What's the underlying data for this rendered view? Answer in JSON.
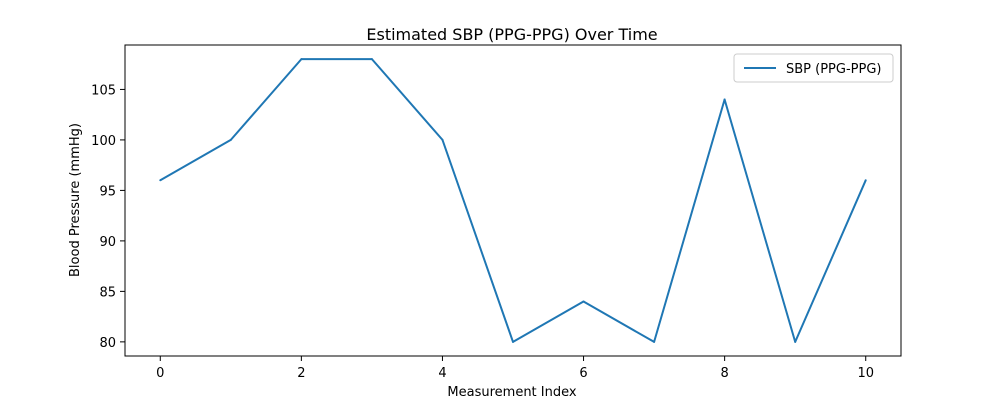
{
  "chart_data": {
    "type": "line",
    "title": "Estimated SBP (PPG-PPG) Over Time",
    "xlabel": "Measurement Index",
    "ylabel": "Blood Pressure (mmHg)",
    "x": [
      0,
      1,
      2,
      3,
      4,
      5,
      6,
      7,
      8,
      9,
      10
    ],
    "series": [
      {
        "name": "SBP (PPG-PPG)",
        "color": "#1f77b4",
        "values": [
          96,
          100,
          108,
          108,
          100,
          80,
          84,
          80,
          104,
          80,
          96
        ]
      }
    ],
    "xlim": [
      -0.5,
      10.5
    ],
    "ylim": [
      78.6,
      109.4
    ],
    "xticks": [
      0,
      2,
      4,
      6,
      8,
      10
    ],
    "yticks": [
      80,
      85,
      90,
      95,
      100,
      105
    ],
    "legend_position": "top-right",
    "grid": false
  }
}
